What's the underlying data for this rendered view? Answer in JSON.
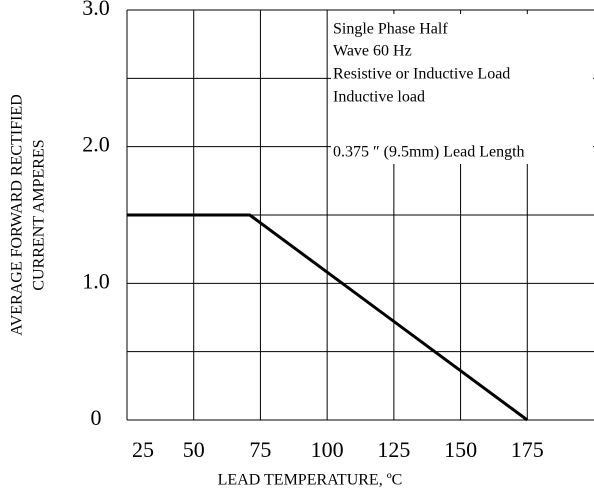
{
  "chart_data": {
    "type": "line",
    "ylabel": [
      "AVERAGE FORWARD   RECTIFIED",
      "CURRENT   AMPERES"
    ],
    "xlabel": "LEAD TEMPERATURE, ºC",
    "annotations": [
      "Single Phase Half",
      "Wave 60 Hz",
      "Resistive or Inductive Load",
      "Inductive load",
      "0.375 ″ (9.5mm) Lead Length"
    ],
    "x": [
      25,
      71,
      175
    ],
    "series": [
      {
        "name": null,
        "color": "#000000",
        "values": [
          1.5,
          1.5,
          0
        ]
      }
    ],
    "xlim": [
      25,
      200
    ],
    "xticks": [
      25,
      50,
      75,
      100,
      125,
      150,
      175
    ],
    "ylim": [
      0,
      3
    ],
    "yticks": [
      0,
      {
        "value": 1,
        "label": "1.0"
      },
      {
        "value": 2,
        "label": "2.0"
      },
      {
        "value": 3,
        "label": "3.0"
      }
    ],
    "yminor": [
      0.5,
      1.5,
      2.5
    ],
    "grid": true
  }
}
